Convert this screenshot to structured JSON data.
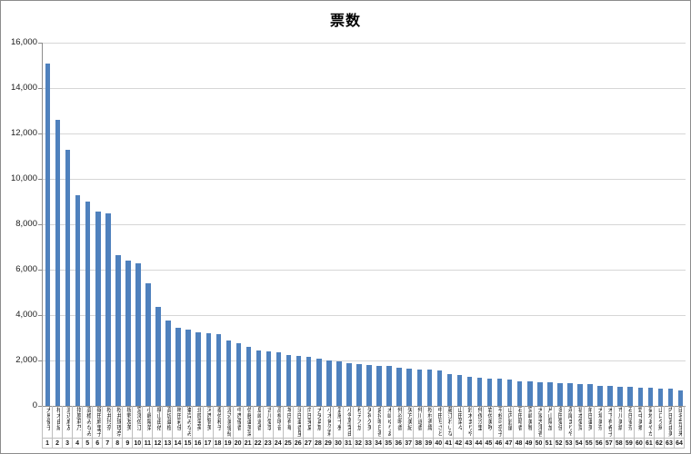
{
  "chart_data": {
    "type": "bar",
    "title": "票数",
    "xlabel": "",
    "ylabel": "",
    "ylim": [
      0,
      16000
    ],
    "ytick_interval": 2000,
    "ytick_labels": [
      "16,000",
      "14,000",
      "12,000",
      "10,000",
      "8,000",
      "6,000",
      "4,000",
      "2,000",
      "0"
    ],
    "grid": "horizontal",
    "legend": "none",
    "bar_color": "#4f81bd",
    "gridline_color": "#d6d6d6",
    "axis_color": "#8c8c8c",
    "ranks": [
      1,
      2,
      3,
      4,
      5,
      6,
      7,
      8,
      9,
      10,
      11,
      12,
      13,
      14,
      15,
      16,
      17,
      18,
      19,
      20,
      21,
      22,
      23,
      24,
      25,
      26,
      27,
      28,
      29,
      30,
      31,
      32,
      33,
      34,
      35,
      36,
      37,
      38,
      39,
      40,
      41,
      42,
      43,
      44,
      45,
      46,
      47,
      48,
      49,
      50,
      51,
      52,
      53,
      54,
      55,
      56,
      57,
      58,
      59,
      60,
      61,
      62,
      63,
      64
    ],
    "categories": [
      "大島優子",
      "柏木由紀",
      "渡辺麻友",
      "指原莉乃",
      "高橋みなみ",
      "篠田麻里子",
      "松井玲奈",
      "松井珠理奈",
      "板野友美",
      "宮澤佐江",
      "小嶋陽菜",
      "横山由依",
      "高城亜樹",
      "梅田彩佳",
      "峯岸みなみ",
      "北原里英",
      "河西智美",
      "秦佐和子",
      "渡辺美優紀",
      "中西優香",
      "佐藤亜美菜",
      "島崎遥香",
      "古川愛李",
      "高柳明音",
      "増田有華",
      "須田亜香里",
      "向田茉夏",
      "大矢真那",
      "小木曽汐莉",
      "武藤十夢",
      "小笠原茉由",
      "秋元才加",
      "矢神久美",
      "倉持明日香",
      "木崎ゆりあ",
      "仲谷明香",
      "矢方美紀",
      "仲川遥香",
      "松村香織",
      "中田ちさと",
      "藤江れいな",
      "山田菜々",
      "鈴木まりや",
      "仲俣汐里",
      "岩佐美咲",
      "平松可奈子",
      "山内鈴蘭",
      "石田晴香",
      "宮崎美穂",
      "大家志津香",
      "片山陽加",
      "多田愛佳",
      "永尾まりや",
      "福本愛菜",
      "前田亜美",
      "大場美奈",
      "木下有希子",
      "市川美織",
      "石田安奈",
      "野中美郷",
      "菊地あやか",
      "山口夕輝",
      "内田眞由美",
      "田名部生来"
    ],
    "values": [
      15100,
      12600,
      11300,
      9300,
      9000,
      8550,
      8500,
      6650,
      6400,
      6300,
      5400,
      4350,
      3750,
      3450,
      3350,
      3250,
      3200,
      3150,
      2900,
      2750,
      2600,
      2450,
      2400,
      2350,
      2250,
      2200,
      2150,
      2100,
      2000,
      1950,
      1900,
      1850,
      1800,
      1750,
      1750,
      1700,
      1650,
      1600,
      1600,
      1550,
      1400,
      1350,
      1300,
      1250,
      1200,
      1200,
      1150,
      1100,
      1100,
      1050,
      1050,
      1000,
      1000,
      950,
      950,
      900,
      900,
      850,
      850,
      800,
      800,
      750,
      750,
      700
    ]
  }
}
